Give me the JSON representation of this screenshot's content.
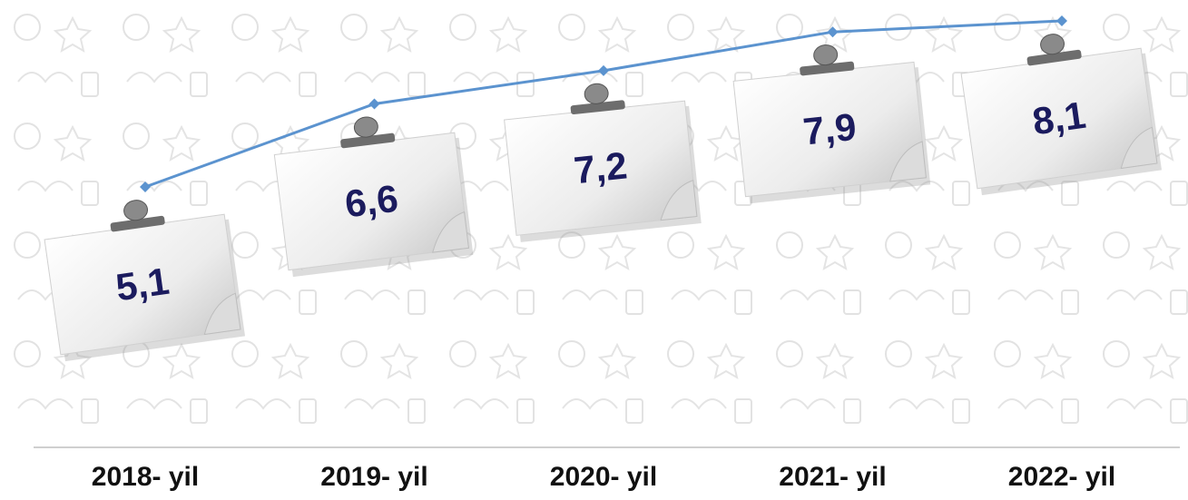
{
  "chart_data": {
    "type": "line",
    "categories": [
      "2018- yil",
      "2019- yil",
      "2020- yil",
      "2021- yil",
      "2022- yil"
    ],
    "values": [
      5.1,
      6.6,
      7.2,
      7.9,
      8.1
    ],
    "value_labels": [
      "5,1",
      "6,6",
      "7,2",
      "7,9",
      "8,1"
    ],
    "color": "#5b93cf"
  }
}
